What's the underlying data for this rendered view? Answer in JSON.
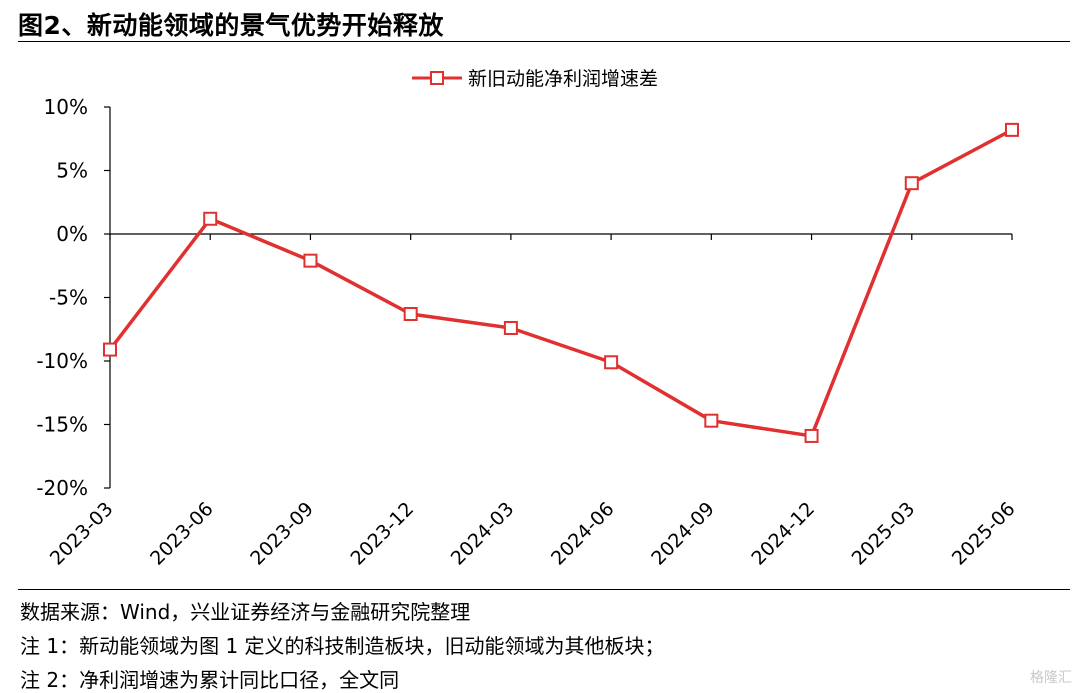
{
  "title": "图2、新动能领域的景气优势开始释放",
  "notes": [
    "数据来源：Wind，兴业证券经济与金融研究院整理",
    "注 1：新动能领域为图 1 定义的科技制造板块，旧动能领域为其他板块；",
    "注 2：净利润增速为累计同比口径，全文同"
  ],
  "watermark": "格隆汇",
  "chart_data": {
    "type": "line",
    "categories": [
      "2023-03",
      "2023-06",
      "2023-09",
      "2023-12",
      "2024-03",
      "2024-06",
      "2024-09",
      "2024-12",
      "2025-03",
      "2025-06"
    ],
    "series": [
      {
        "name": "新旧动能净利润增速差",
        "values": [
          -9.1,
          1.2,
          -2.1,
          -6.3,
          -7.4,
          -10.1,
          -14.7,
          -15.9,
          4.0,
          8.2
        ],
        "color": "#e03030"
      }
    ],
    "yticks": [
      "10%",
      "5%",
      "0%",
      "-5%",
      "-10%",
      "-15%",
      "-20%"
    ],
    "ylim": [
      -20,
      10
    ],
    "legend": "top-center",
    "grid": false
  }
}
